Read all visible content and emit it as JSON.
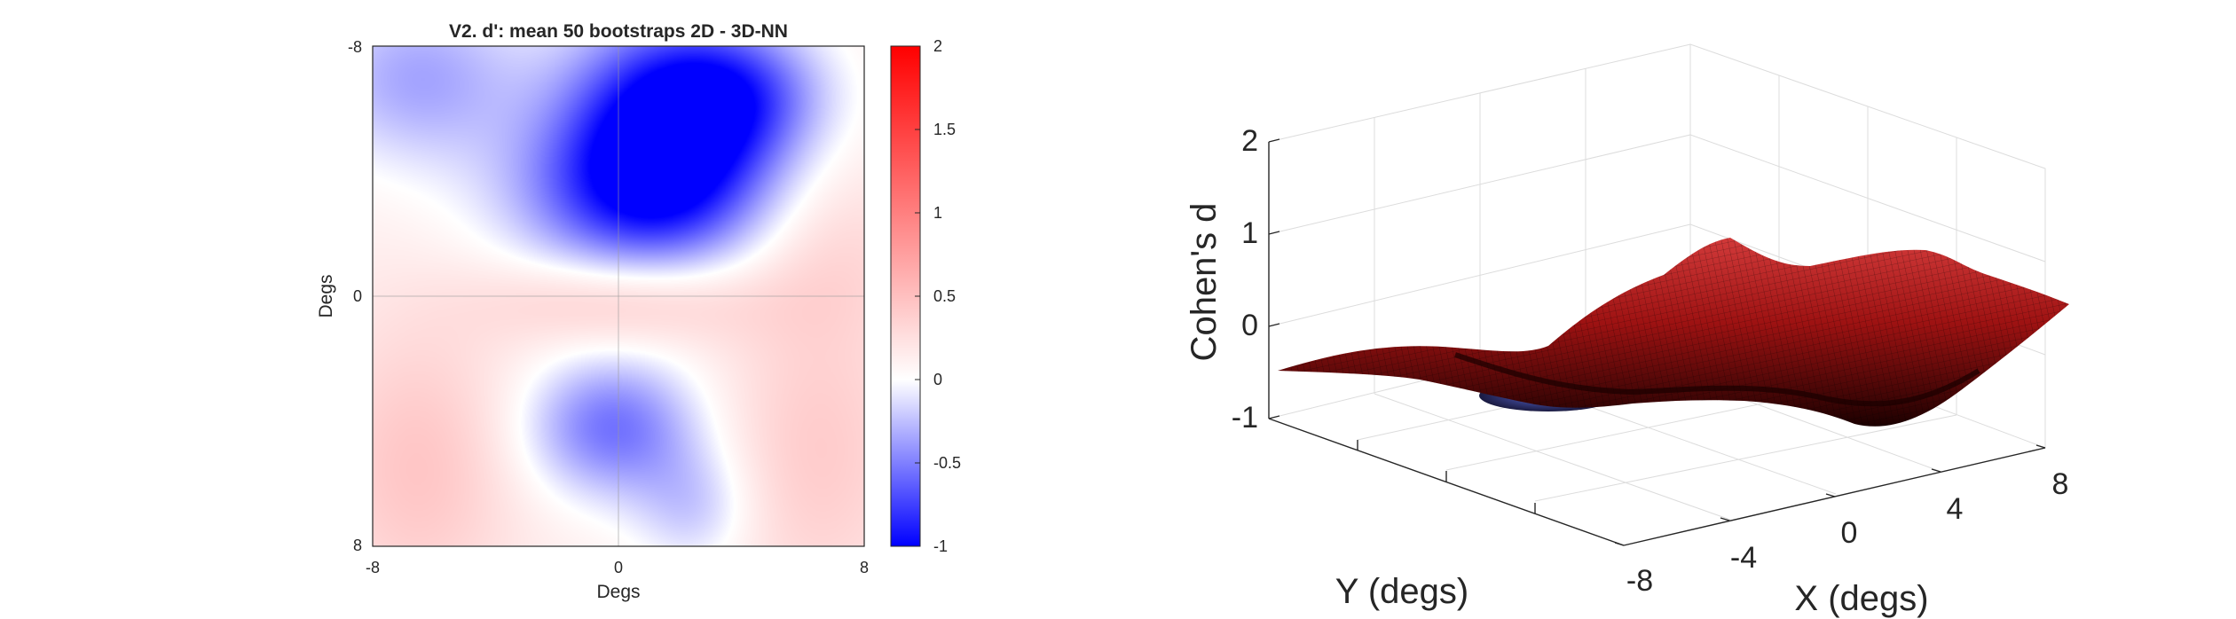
{
  "chart_data": [
    {
      "type": "heatmap",
      "title": "V2. d': mean 50 bootstraps 2D - 3D-NN",
      "xlabel": "Degs",
      "ylabel": "Degs",
      "xlim": [
        -8,
        8
      ],
      "ylim": [
        -8,
        8
      ],
      "y_direction": "reversed",
      "x_ticks": [
        "-8",
        "0",
        "8"
      ],
      "y_ticks": [
        "-8",
        "0",
        "8"
      ],
      "colorbar": {
        "range": [
          -1,
          2
        ],
        "ticks": [
          "2",
          "1.5",
          "1",
          "0.5",
          "0",
          "-0.5",
          "-1"
        ],
        "colormap": [
          "#0000ff",
          "#ffffff",
          "#ff0000"
        ]
      },
      "crosshair_color": "#9a9a9a",
      "features": [
        {
          "x": 1.5,
          "y": -5.5,
          "value": -1.0,
          "sx": 2.4,
          "sy": 2.4
        },
        {
          "x": 0.5,
          "y": -3.2,
          "value": -0.55,
          "sx": 3.0,
          "sy": 1.8
        },
        {
          "x": 4.0,
          "y": -6.5,
          "value": -0.45,
          "sx": 2.0,
          "sy": 1.5
        },
        {
          "x": -6.5,
          "y": -7.0,
          "value": -0.35,
          "sx": 2.5,
          "sy": 2.0
        },
        {
          "x": -0.2,
          "y": 4.2,
          "value": -0.55,
          "sx": 2.0,
          "sy": 1.6
        },
        {
          "x": 2.5,
          "y": 6.8,
          "value": -0.2,
          "sx": 1.4,
          "sy": 1.4
        },
        {
          "x": 0.2,
          "y": 0.2,
          "value": 0.45,
          "sx": 3.2,
          "sy": 1.0
        },
        {
          "x": -6.5,
          "y": 5.5,
          "value": 0.45,
          "sx": 2.2,
          "sy": 3.2
        },
        {
          "x": 6.5,
          "y": 5.0,
          "value": 0.4,
          "sx": 2.2,
          "sy": 3.5
        },
        {
          "x": 7.0,
          "y": -1.5,
          "value": 0.3,
          "sx": 2.0,
          "sy": 2.0
        }
      ],
      "base_value": 0.12
    },
    {
      "type": "surface",
      "zlabel": "Cohen's d",
      "xlabel": "X (degs)",
      "ylabel": "Y (degs)",
      "zlim": [
        -1,
        2
      ],
      "z_ticks": [
        "2",
        "1",
        "0",
        "-1"
      ],
      "x_ticks": [
        "-8",
        "-4",
        "0",
        "4",
        "8"
      ],
      "grid": true,
      "colormap": [
        "#000000",
        "#8c0000",
        "#ff4a4a"
      ]
    }
  ]
}
